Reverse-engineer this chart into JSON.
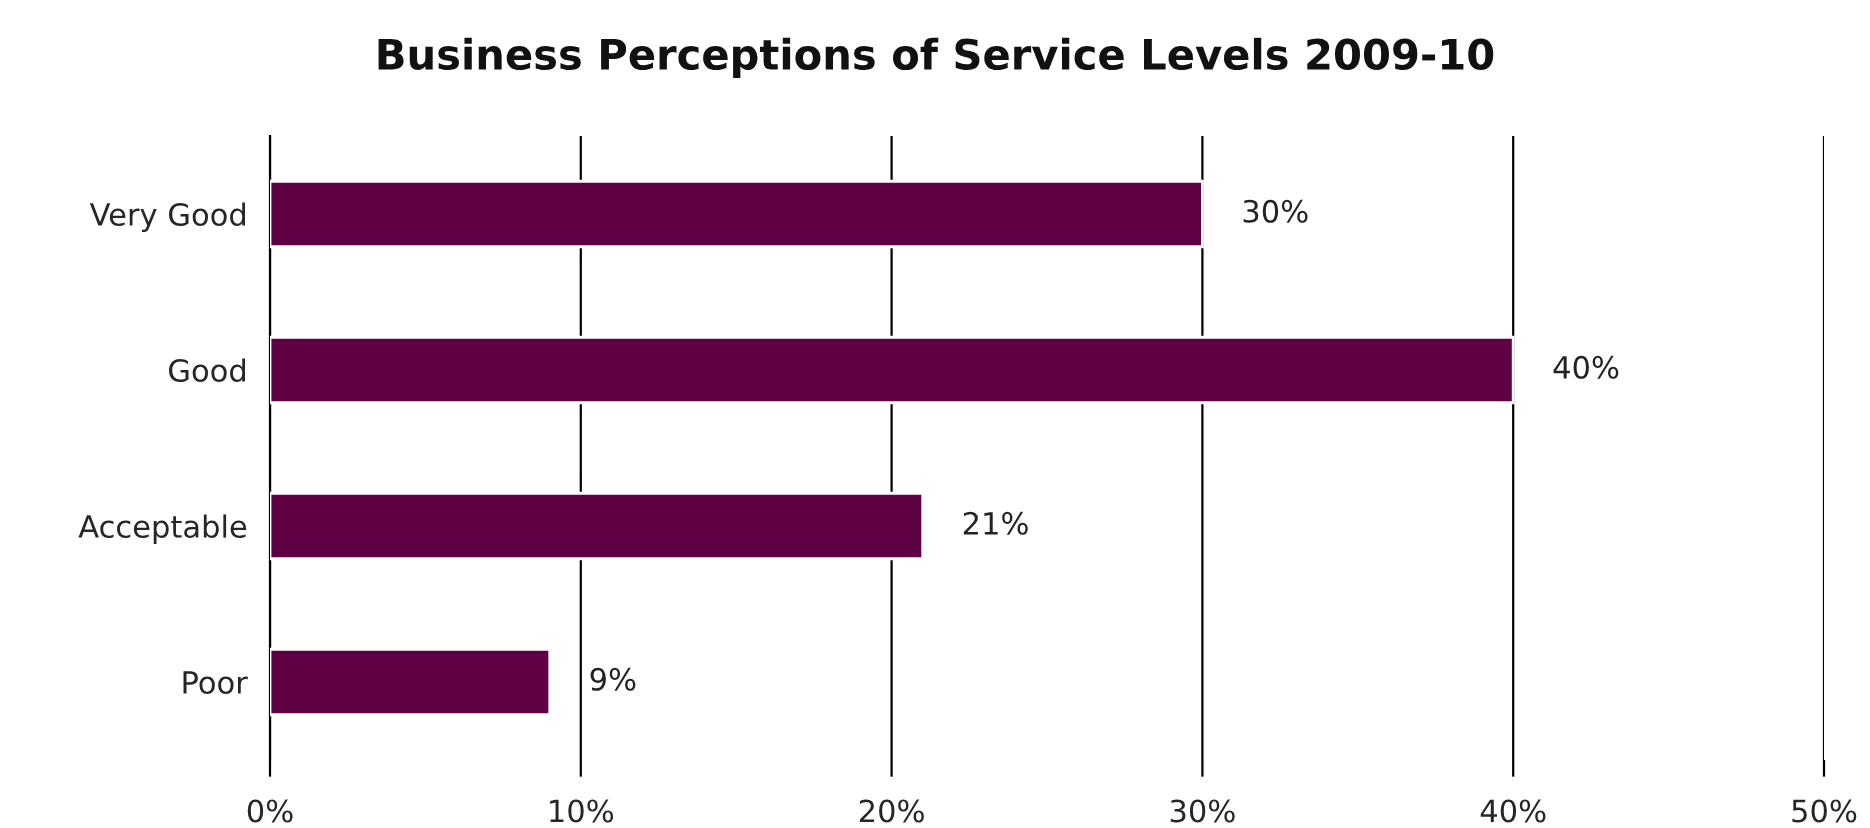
{
  "chart_data": {
    "type": "bar",
    "orientation": "horizontal",
    "title": "Business Perceptions of Service Levels 2009-10",
    "categories": [
      "Very Good",
      "Good",
      "Acceptable",
      "Poor"
    ],
    "values": [
      30,
      40,
      21,
      9
    ],
    "color": "#5f0044",
    "value_labels": [
      "30%",
      "40%",
      "21%",
      "9%"
    ],
    "xlim": [
      0,
      50
    ],
    "xticks": [
      {
        "value": 0,
        "label": "0%"
      },
      {
        "value": 10,
        "label": "10%"
      },
      {
        "value": 20,
        "label": "20%"
      },
      {
        "value": 30,
        "label": "30%"
      },
      {
        "value": 40,
        "label": "40%"
      },
      {
        "value": 50,
        "label": "50%"
      }
    ],
    "grid": "x",
    "legend": false
  }
}
